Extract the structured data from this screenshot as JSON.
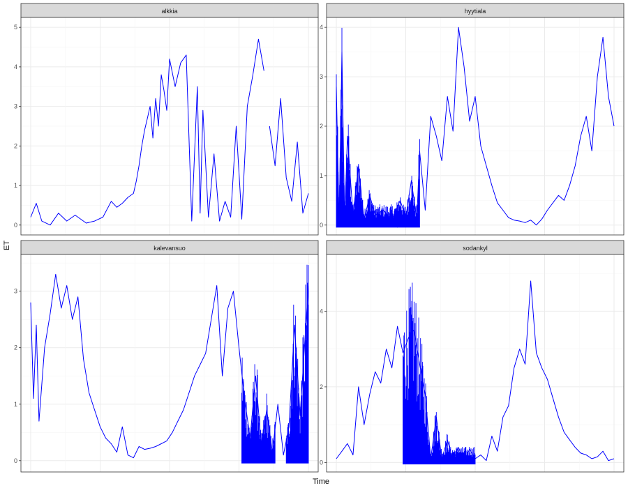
{
  "figure": {
    "xlabel": "Time",
    "ylabel": "ET",
    "style": {
      "line_color": "#0000ff",
      "strip_fill": "#d9d9d9",
      "strip_border": "#333333",
      "panel_border": "#333333",
      "grid_major": "#ebebeb",
      "grid_minor": "#f5f5f5",
      "background": "#ffffff"
    }
  },
  "chart_data": [
    {
      "type": "line",
      "panel": "alkkia",
      "ylim": [
        -0.25,
        5.25
      ],
      "yticks": [
        0,
        1,
        2,
        3,
        4,
        5
      ],
      "grid": true,
      "series": [
        {
          "x": [
            0,
            0.02,
            0.04,
            0.07,
            0.1,
            0.13,
            0.16,
            0.2,
            0.23,
            0.26,
            0.29,
            0.31,
            0.33,
            0.35,
            0.37,
            0.38,
            0.39,
            0.4,
            0.41,
            0.42,
            0.43,
            0.44,
            0.45,
            0.46,
            0.47,
            0.48,
            0.49,
            0.5,
            0.52,
            0.54,
            0.56,
            0.58,
            0.6,
            0.61,
            0.62,
            0.64,
            0.66,
            0.68,
            0.7,
            0.72,
            0.74,
            0.76,
            0.78,
            0.8,
            0.82,
            0.84,
            0.86,
            0.88,
            0.9,
            0.92,
            0.94,
            0.96,
            0.98,
            1.0
          ],
          "y": [
            0.2,
            0.55,
            0.1,
            0.0,
            0.3,
            0.1,
            0.25,
            0.05,
            0.1,
            0.2,
            0.6,
            0.45,
            0.55,
            0.7,
            0.8,
            1.1,
            1.5,
            2.0,
            2.4,
            2.7,
            3.0,
            2.2,
            3.2,
            2.5,
            3.8,
            3.4,
            2.9,
            4.2,
            3.5,
            4.1,
            4.3,
            0.1,
            3.5,
            0.3,
            2.9,
            0.2,
            1.8,
            0.1,
            0.6,
            0.2,
            2.5,
            0.15,
            3.0,
            3.8,
            4.7,
            3.9,
            2.5,
            1.5,
            3.2,
            1.2,
            0.6,
            2.1,
            0.3,
            0.8
          ],
          "gaps_after_index": [
            45
          ]
        }
      ]
    },
    {
      "type": "line",
      "panel": "hyytiala",
      "ylim": [
        -0.2,
        4.2
      ],
      "yticks": [
        0,
        1,
        2,
        3,
        4
      ],
      "grid": true,
      "series": [
        {
          "x": [
            0,
            0.01,
            0.02,
            0.03,
            0.04,
            0.06,
            0.08,
            0.1,
            0.12,
            0.14,
            0.17,
            0.2,
            0.23,
            0.25,
            0.27,
            0.29,
            0.3,
            0.32,
            0.34,
            0.36,
            0.38,
            0.4,
            0.42,
            0.44,
            0.46,
            0.48,
            0.5,
            0.52,
            0.54,
            0.56,
            0.58,
            0.6,
            0.62,
            0.64,
            0.66,
            0.68,
            0.7,
            0.72,
            0.74,
            0.76,
            0.78,
            0.8,
            0.82,
            0.84,
            0.86,
            0.88,
            0.9,
            0.92,
            0.94,
            0.96,
            0.98,
            1.0
          ],
          "y": [
            2.8,
            0.05,
            3.5,
            0.1,
            1.8,
            0.2,
            1.2,
            0.1,
            0.6,
            0.2,
            0.3,
            0.1,
            0.5,
            0.15,
            0.9,
            0.1,
            1.5,
            0.3,
            2.2,
            1.8,
            1.3,
            2.6,
            1.9,
            4.0,
            3.2,
            2.1,
            2.6,
            1.6,
            1.2,
            0.8,
            0.45,
            0.3,
            0.15,
            0.1,
            0.08,
            0.05,
            0.1,
            0.0,
            0.12,
            0.3,
            0.45,
            0.6,
            0.5,
            0.8,
            1.2,
            1.8,
            2.2,
            1.5,
            3.0,
            3.8,
            2.6,
            2.0
          ],
          "dense_segments": [
            [
              0.0,
              0.22
            ],
            [
              0.22,
              0.3
            ]
          ]
        }
      ]
    },
    {
      "type": "line",
      "panel": "kalevansuo",
      "ylim": [
        -0.2,
        3.65
      ],
      "yticks": [
        0,
        1,
        2,
        3
      ],
      "grid": true,
      "series": [
        {
          "x": [
            0,
            0.01,
            0.02,
            0.03,
            0.05,
            0.07,
            0.09,
            0.11,
            0.13,
            0.15,
            0.17,
            0.19,
            0.21,
            0.23,
            0.25,
            0.27,
            0.29,
            0.31,
            0.33,
            0.35,
            0.37,
            0.39,
            0.41,
            0.43,
            0.45,
            0.47,
            0.49,
            0.51,
            0.53,
            0.55,
            0.57,
            0.59,
            0.61,
            0.63,
            0.65,
            0.67,
            0.69,
            0.71,
            0.73,
            0.75,
            0.77,
            0.79,
            0.81,
            0.83,
            0.85,
            0.87,
            0.89,
            0.91,
            0.93,
            0.95,
            0.97,
            1.0
          ],
          "y": [
            2.8,
            1.1,
            2.4,
            0.7,
            2.0,
            2.6,
            3.3,
            2.7,
            3.1,
            2.5,
            2.9,
            1.8,
            1.2,
            0.9,
            0.6,
            0.4,
            0.3,
            0.15,
            0.6,
            0.1,
            0.05,
            0.25,
            0.2,
            0.22,
            0.25,
            0.3,
            0.35,
            0.5,
            0.7,
            0.9,
            1.2,
            1.5,
            1.7,
            1.9,
            2.5,
            3.1,
            1.5,
            2.7,
            3.0,
            2.0,
            1.1,
            0.4,
            1.5,
            0.3,
            0.9,
            0.15,
            1.0,
            0.1,
            0.6,
            2.4,
            0.8,
            3.1
          ],
          "dense_segments": [
            [
              0.76,
              0.88
            ],
            [
              0.92,
              1.0
            ]
          ]
        }
      ]
    },
    {
      "type": "line",
      "panel": "sodankyl",
      "ylim": [
        -0.25,
        5.5
      ],
      "yticks": [
        0,
        2,
        4
      ],
      "grid": true,
      "series": [
        {
          "x": [
            0,
            0.02,
            0.04,
            0.06,
            0.08,
            0.1,
            0.12,
            0.14,
            0.16,
            0.18,
            0.2,
            0.22,
            0.24,
            0.26,
            0.28,
            0.3,
            0.32,
            0.34,
            0.36,
            0.38,
            0.4,
            0.42,
            0.44,
            0.46,
            0.48,
            0.5,
            0.52,
            0.54,
            0.56,
            0.58,
            0.6,
            0.62,
            0.64,
            0.66,
            0.68,
            0.7,
            0.72,
            0.74,
            0.76,
            0.78,
            0.8,
            0.82,
            0.84,
            0.86,
            0.88,
            0.9,
            0.92,
            0.94,
            0.96,
            0.98,
            1.0
          ],
          "y": [
            0.1,
            0.3,
            0.5,
            0.2,
            2.0,
            1.0,
            1.8,
            2.4,
            2.1,
            3.0,
            2.5,
            3.6,
            2.9,
            3.3,
            3.5,
            2.6,
            1.8,
            0.1,
            1.2,
            0.1,
            0.6,
            0.05,
            0.4,
            0.05,
            0.35,
            0.1,
            0.2,
            0.05,
            0.7,
            0.3,
            1.2,
            1.5,
            2.5,
            3.0,
            2.6,
            4.8,
            2.9,
            2.5,
            2.2,
            1.7,
            1.2,
            0.8,
            0.6,
            0.4,
            0.25,
            0.2,
            0.1,
            0.15,
            0.3,
            0.05,
            0.1
          ],
          "dense_segments": [
            [
              0.24,
              0.5
            ]
          ]
        }
      ]
    }
  ]
}
